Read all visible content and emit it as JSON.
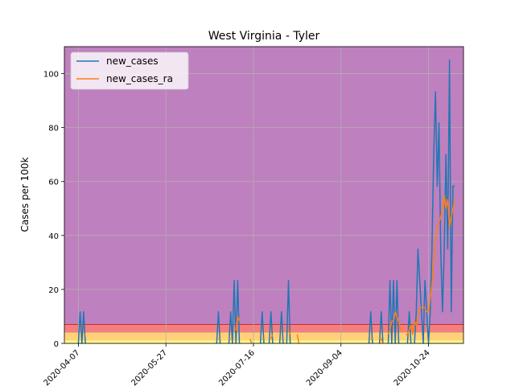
{
  "chart_data": {
    "type": "line",
    "title": "West Virginia - Tyler",
    "xlabel": "",
    "ylabel": "Cases per 100k",
    "x_start": "2020-03-30",
    "x_end": "2020-11-13",
    "xlim": [
      "2020-03-30",
      "2020-11-13"
    ],
    "ylim": [
      0,
      110
    ],
    "x_ticks": [
      "2020-04-07",
      "2020-05-27",
      "2020-07-16",
      "2020-09-04",
      "2020-10-24"
    ],
    "y_ticks": [
      0,
      20,
      40,
      60,
      80,
      100
    ],
    "grid": true,
    "legend_position": "top-left",
    "bands": [
      {
        "from": 0,
        "to": 1,
        "color": "#ffff80"
      },
      {
        "from": 1,
        "to": 4,
        "color": "#ffd27a"
      },
      {
        "from": 4,
        "to": 7,
        "color": "#f28080"
      },
      {
        "from": 7,
        "to": 110,
        "color": "#bf80bf"
      }
    ],
    "band_line": {
      "value": 7,
      "color": "#d62728"
    },
    "series": [
      {
        "name": "new_cases",
        "color": "#1f77b4",
        "points": [
          [
            "2020-04-07",
            0
          ],
          [
            "2020-04-08",
            11.7
          ],
          [
            "2020-04-09",
            0
          ],
          [
            "2020-04-10",
            11.7
          ],
          [
            "2020-04-11",
            0
          ],
          [
            "2020-04-13",
            0
          ],
          [
            "2020-04-15",
            0
          ],
          [
            "2020-04-18",
            0
          ],
          [
            "2020-06-25",
            0
          ],
          [
            "2020-06-26",
            11.7
          ],
          [
            "2020-06-27",
            0
          ],
          [
            "2020-07-02",
            0
          ],
          [
            "2020-07-03",
            11.7
          ],
          [
            "2020-07-04",
            0
          ],
          [
            "2020-07-05",
            23.3
          ],
          [
            "2020-07-06",
            0
          ],
          [
            "2020-07-07",
            23.3
          ],
          [
            "2020-07-08",
            0
          ],
          [
            "2020-07-10",
            0
          ],
          [
            "2020-07-13",
            0
          ],
          [
            "2020-07-20",
            0
          ],
          [
            "2020-07-21",
            11.7
          ],
          [
            "2020-07-22",
            0
          ],
          [
            "2020-07-25",
            0
          ],
          [
            "2020-07-26",
            11.7
          ],
          [
            "2020-07-27",
            0
          ],
          [
            "2020-07-31",
            0
          ],
          [
            "2020-08-01",
            11.7
          ],
          [
            "2020-08-02",
            0
          ],
          [
            "2020-08-04",
            0
          ],
          [
            "2020-08-05",
            23.3
          ],
          [
            "2020-08-06",
            0
          ],
          [
            "2020-08-09",
            0
          ],
          [
            "2020-09-20",
            0
          ],
          [
            "2020-09-21",
            11.7
          ],
          [
            "2020-09-22",
            0
          ],
          [
            "2020-09-26",
            0
          ],
          [
            "2020-09-27",
            11.7
          ],
          [
            "2020-09-28",
            0
          ],
          [
            "2020-10-01",
            0
          ],
          [
            "2020-10-02",
            23.3
          ],
          [
            "2020-10-03",
            0
          ],
          [
            "2020-10-04",
            23.3
          ],
          [
            "2020-10-05",
            0
          ],
          [
            "2020-10-06",
            23.3
          ],
          [
            "2020-10-07",
            0
          ],
          [
            "2020-10-12",
            0
          ],
          [
            "2020-10-13",
            11.7
          ],
          [
            "2020-10-14",
            0
          ],
          [
            "2020-10-16",
            0
          ],
          [
            "2020-10-17",
            11.7
          ],
          [
            "2020-10-18",
            35
          ],
          [
            "2020-10-19",
            23.3
          ],
          [
            "2020-10-20",
            11.7
          ],
          [
            "2020-10-21",
            0
          ],
          [
            "2020-10-22",
            23.3
          ],
          [
            "2020-10-23",
            11.7
          ],
          [
            "2020-10-24",
            0
          ],
          [
            "2020-10-25",
            11.7
          ],
          [
            "2020-10-26",
            35
          ],
          [
            "2020-10-27",
            70
          ],
          [
            "2020-10-28",
            93.3
          ],
          [
            "2020-10-29",
            58.3
          ],
          [
            "2020-10-30",
            81.7
          ],
          [
            "2020-10-31",
            35
          ],
          [
            "2020-11-01",
            11.7
          ],
          [
            "2020-11-02",
            35
          ],
          [
            "2020-11-03",
            70
          ],
          [
            "2020-11-04",
            35
          ],
          [
            "2020-11-05",
            105
          ],
          [
            "2020-11-06",
            11.7
          ],
          [
            "2020-11-07",
            58.3
          ],
          [
            "2020-11-08",
            58.3
          ]
        ]
      },
      {
        "name": "new_cases_ra",
        "color": "#ff7f0e",
        "points": [
          [
            "2020-04-10",
            3.3
          ],
          [
            "2020-04-11",
            3.3
          ],
          [
            "2020-04-13",
            3.3
          ],
          [
            "2020-04-15",
            1.7
          ],
          [
            "2020-04-17",
            0
          ],
          [
            "2020-06-26",
            1.7
          ],
          [
            "2020-06-27",
            1.7
          ],
          [
            "2020-07-02",
            1.7
          ],
          [
            "2020-07-03",
            1.7
          ],
          [
            "2020-07-05",
            5
          ],
          [
            "2020-07-06",
            5
          ],
          [
            "2020-07-07",
            10
          ],
          [
            "2020-07-08",
            8.3
          ],
          [
            "2020-07-10",
            8.3
          ],
          [
            "2020-07-12",
            5
          ],
          [
            "2020-07-14",
            1.7
          ],
          [
            "2020-07-15",
            0
          ],
          [
            "2020-07-21",
            1.7
          ],
          [
            "2020-07-22",
            1.7
          ],
          [
            "2020-07-26",
            1.7
          ],
          [
            "2020-07-27",
            3.3
          ],
          [
            "2020-07-29",
            1.7
          ],
          [
            "2020-08-01",
            1.7
          ],
          [
            "2020-08-02",
            1.7
          ],
          [
            "2020-08-05",
            5
          ],
          [
            "2020-08-06",
            3.3
          ],
          [
            "2020-08-08",
            3.3
          ],
          [
            "2020-08-10",
            3.3
          ],
          [
            "2020-08-11",
            0
          ],
          [
            "2020-09-21",
            1.7
          ],
          [
            "2020-09-22",
            1.7
          ],
          [
            "2020-09-26",
            1.7
          ],
          [
            "2020-09-27",
            1.7
          ],
          [
            "2020-09-28",
            0
          ],
          [
            "2020-10-01",
            3.3
          ],
          [
            "2020-10-02",
            5
          ],
          [
            "2020-10-03",
            8.3
          ],
          [
            "2020-10-04",
            8.3
          ],
          [
            "2020-10-05",
            11.7
          ],
          [
            "2020-10-06",
            10
          ],
          [
            "2020-10-07",
            8.3
          ],
          [
            "2020-10-08",
            5
          ],
          [
            "2020-10-09",
            5
          ],
          [
            "2020-10-11",
            3.3
          ],
          [
            "2020-10-12",
            3.3
          ],
          [
            "2020-10-13",
            5
          ],
          [
            "2020-10-14",
            6.7
          ],
          [
            "2020-10-15",
            3.3
          ],
          [
            "2020-10-16",
            8.3
          ],
          [
            "2020-10-17",
            6.7
          ],
          [
            "2020-10-18",
            10
          ],
          [
            "2020-10-19",
            13.3
          ],
          [
            "2020-10-20",
            13.3
          ],
          [
            "2020-10-21",
            13.3
          ],
          [
            "2020-10-22",
            13.3
          ],
          [
            "2020-10-23",
            11.7
          ],
          [
            "2020-10-24",
            11.7
          ],
          [
            "2020-10-25",
            16.7
          ],
          [
            "2020-10-26",
            21.7
          ],
          [
            "2020-10-27",
            30
          ],
          [
            "2020-10-28",
            38.3
          ],
          [
            "2020-10-29",
            43.3
          ],
          [
            "2020-10-30",
            45
          ],
          [
            "2020-10-31",
            46.7
          ],
          [
            "2020-11-01",
            50
          ],
          [
            "2020-11-02",
            55
          ],
          [
            "2020-11-03",
            50
          ],
          [
            "2020-11-04",
            53.3
          ],
          [
            "2020-11-05",
            43.3
          ],
          [
            "2020-11-06",
            46.7
          ],
          [
            "2020-11-07",
            50
          ],
          [
            "2020-11-08",
            53.3
          ]
        ]
      }
    ]
  }
}
